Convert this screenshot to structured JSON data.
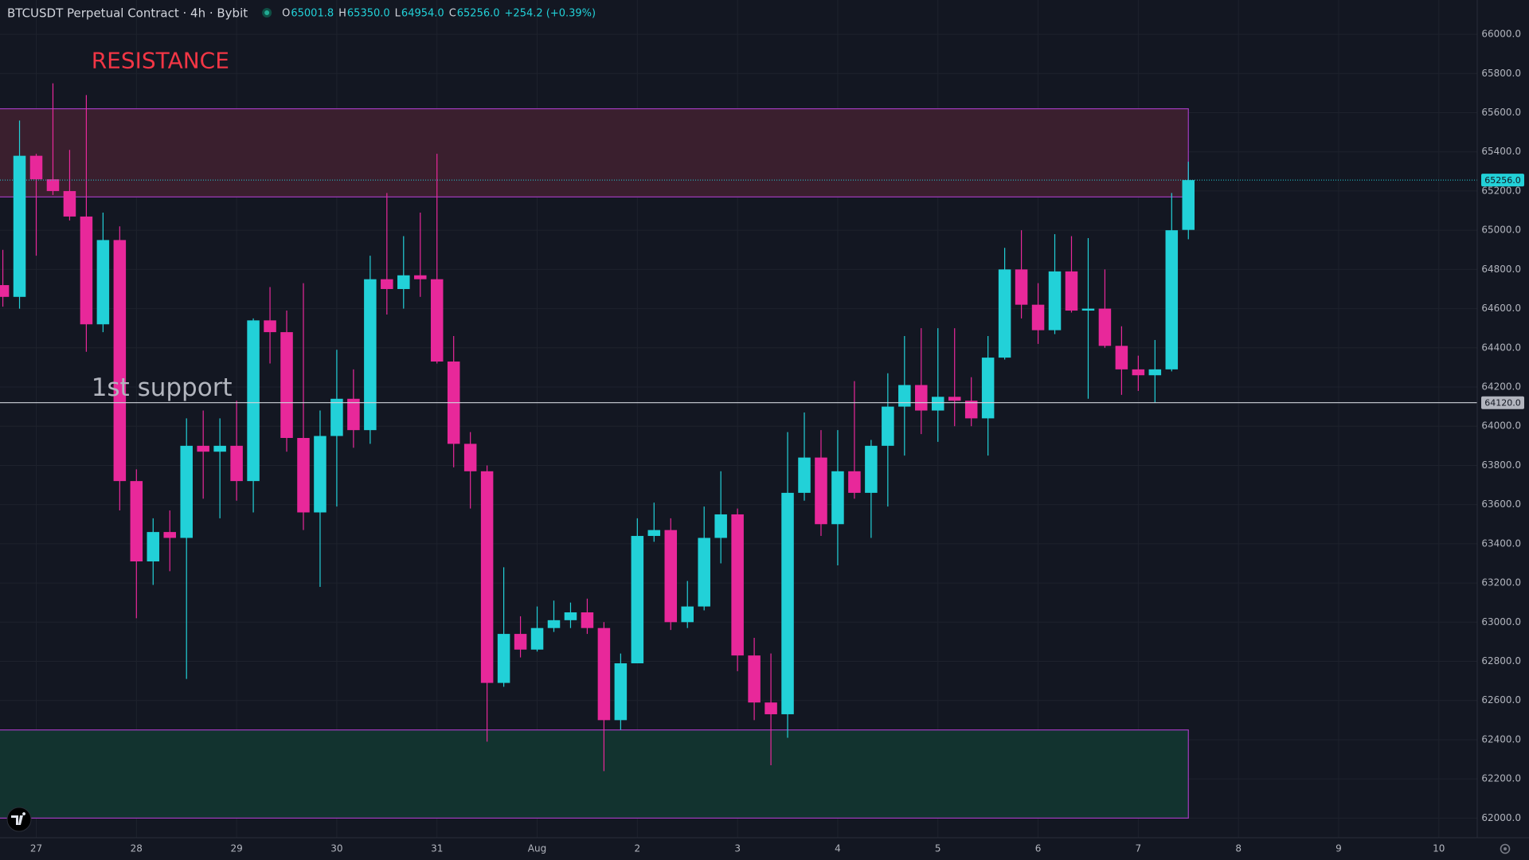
{
  "chart_data": {
    "type": "candlestick",
    "title": "BTCUSDT Perpetual Contract · 4h · Bybit",
    "ohlc_labels": [
      {
        "key": "O",
        "text": "65001.8"
      },
      {
        "key": "H",
        "text": "65350.0"
      },
      {
        "key": "L",
        "text": "64954.0"
      },
      {
        "key": "C",
        "text": "65256.0"
      }
    ],
    "change": "+254.2 (+0.39%)",
    "colors": {
      "up": "#22d1d8",
      "down": "#e8289a"
    },
    "x": [
      -1,
      0,
      1,
      2,
      3,
      4,
      5,
      6,
      7,
      8,
      9,
      10,
      11,
      12,
      13,
      14,
      15,
      16,
      17,
      18,
      19,
      20,
      21,
      22,
      23,
      24,
      25,
      26,
      27,
      28,
      29,
      30,
      31,
      32,
      33,
      34,
      35,
      36,
      37,
      38,
      39,
      40,
      41,
      42,
      43,
      44,
      45,
      46,
      47,
      48,
      49,
      50,
      51,
      52,
      53,
      54,
      55,
      56,
      57,
      58,
      59,
      60,
      61,
      62,
      63,
      64,
      65,
      66,
      67,
      68,
      69,
      70
    ],
    "open": [
      64720,
      64660,
      65380,
      65260,
      65200,
      65070,
      64520,
      64950,
      63720,
      63310,
      63460,
      63430,
      63900,
      63870,
      63900,
      63720,
      64540,
      64480,
      63940,
      63560,
      63950,
      64140,
      63980,
      64750,
      64700,
      64770,
      64750,
      64330,
      63910,
      63770,
      62690,
      62940,
      62860,
      62970,
      63010,
      63050,
      62970,
      62500,
      62790,
      63440,
      63470,
      63000,
      63080,
      63430,
      63550,
      62830,
      62590,
      62530,
      63660,
      63840,
      63500,
      63770,
      63660,
      63900,
      64100,
      64210,
      64080,
      64150,
      64130,
      64040,
      64350,
      64800,
      64620,
      64490,
      64790,
      64590,
      64600,
      64410,
      64290,
      64260,
      64290,
      65001.8
    ],
    "high": [
      64900,
      65560,
      65390,
      65750,
      65410,
      65690,
      65090,
      65020,
      63780,
      63530,
      63570,
      64040,
      64080,
      64040,
      64130,
      64550,
      64710,
      64590,
      64730,
      64080,
      64390,
      64290,
      64870,
      65190,
      64970,
      65090,
      65390,
      64460,
      63970,
      63800,
      63280,
      63030,
      63080,
      63110,
      63100,
      63120,
      63000,
      62840,
      63530,
      63610,
      63530,
      63210,
      63590,
      63770,
      63580,
      62920,
      62840,
      63970,
      64070,
      63980,
      63980,
      64230,
      63930,
      64270,
      64460,
      64500,
      64500,
      64500,
      64250,
      64460,
      64910,
      65000,
      64730,
      64980,
      64970,
      64960,
      64800,
      64510,
      64360,
      64440,
      65190,
      65350
    ],
    "low": [
      64610,
      64600,
      64870,
      65180,
      65050,
      64380,
      64480,
      63570,
      63020,
      63190,
      63260,
      62710,
      63630,
      63530,
      63620,
      63560,
      64320,
      63870,
      63470,
      63180,
      63590,
      63890,
      63910,
      64570,
      64600,
      64660,
      64320,
      63790,
      63580,
      62390,
      62670,
      62820,
      62850,
      62950,
      62970,
      62940,
      62240,
      62450,
      62790,
      63410,
      62960,
      62970,
      63060,
      63300,
      62750,
      62500,
      62270,
      62410,
      63620,
      63440,
      63290,
      63630,
      63430,
      63590,
      63850,
      63960,
      63920,
      64000,
      64000,
      63850,
      64340,
      64550,
      64420,
      64470,
      64580,
      64140,
      64400,
      64160,
      64180,
      64120,
      64280,
      64954
    ],
    "close": [
      64660,
      65380,
      65260,
      65200,
      65070,
      64520,
      64950,
      63720,
      63310,
      63460,
      63430,
      63900,
      63870,
      63900,
      63720,
      64540,
      64480,
      63940,
      63560,
      63950,
      64140,
      63980,
      64750,
      64700,
      64770,
      64750,
      64330,
      63910,
      63770,
      62690,
      62940,
      62860,
      62970,
      63010,
      63050,
      62970,
      62500,
      62790,
      63440,
      63470,
      63000,
      63080,
      63430,
      63550,
      62830,
      62590,
      62530,
      63660,
      63840,
      63500,
      63770,
      63660,
      63900,
      64100,
      64210,
      64080,
      64150,
      64130,
      64040,
      64350,
      64800,
      64620,
      64490,
      64790,
      64590,
      64600,
      64410,
      64290,
      64260,
      64290,
      65000,
      65256
    ],
    "xlim": [
      -1.17,
      87.3
    ],
    "xticks": [
      {
        "value": 1,
        "label": "27"
      },
      {
        "value": 7,
        "label": "28"
      },
      {
        "value": 13,
        "label": "29"
      },
      {
        "value": 19,
        "label": "30"
      },
      {
        "value": 25,
        "label": "31"
      },
      {
        "value": 31,
        "label": "Aug"
      },
      {
        "value": 37,
        "label": "2"
      },
      {
        "value": 43,
        "label": "3"
      },
      {
        "value": 49,
        "label": "4"
      },
      {
        "value": 55,
        "label": "5"
      },
      {
        "value": 61,
        "label": "6"
      },
      {
        "value": 67,
        "label": "7"
      },
      {
        "value": 73,
        "label": "8"
      },
      {
        "value": 79,
        "label": "9"
      },
      {
        "value": 85,
        "label": "10"
      }
    ],
    "ylim": [
      61900,
      66175
    ],
    "yticks": [
      {
        "value": 62000,
        "label": "62000.0"
      },
      {
        "value": 62200,
        "label": "62200.0"
      },
      {
        "value": 62400,
        "label": "62400.0"
      },
      {
        "value": 62600,
        "label": "62600.0"
      },
      {
        "value": 62800,
        "label": "62800.0"
      },
      {
        "value": 63000,
        "label": "63000.0"
      },
      {
        "value": 63200,
        "label": "63200.0"
      },
      {
        "value": 63400,
        "label": "63400.0"
      },
      {
        "value": 63600,
        "label": "63600.0"
      },
      {
        "value": 63800,
        "label": "63800.0"
      },
      {
        "value": 64000,
        "label": "64000.0"
      },
      {
        "value": 64200,
        "label": "64200.0"
      },
      {
        "value": 64400,
        "label": "64400.0"
      },
      {
        "value": 64600,
        "label": "64600.0"
      },
      {
        "value": 64800,
        "label": "64800.0"
      },
      {
        "value": 65000,
        "label": "65000.0"
      },
      {
        "value": 65200,
        "label": "65200.0"
      },
      {
        "value": 65400,
        "label": "65400.0"
      },
      {
        "value": 65600,
        "label": "65600.0"
      },
      {
        "value": 65800,
        "label": "65800.0"
      },
      {
        "value": 66000,
        "label": "66000.0"
      }
    ],
    "grid": true,
    "zones": [
      {
        "top": 65620,
        "bottom": 65170,
        "x_end": 70,
        "fill": "#3a1f2e",
        "border": "#a23bbf"
      },
      {
        "top": 62450,
        "bottom": 62000,
        "x_end": 70,
        "fill": "#12332f",
        "border": "#a23bbf"
      }
    ],
    "annotations": [
      {
        "text": "RESISTANCE",
        "x": 4.3,
        "y": 65860,
        "color": "#f23645"
      },
      {
        "text": "1st support",
        "x": 4.3,
        "y": 64190,
        "color": "#b2b5be"
      }
    ],
    "support_line": {
      "value": 64120,
      "label": "64120.0"
    },
    "last_price": {
      "value": 65256,
      "label": "65256.0"
    }
  }
}
